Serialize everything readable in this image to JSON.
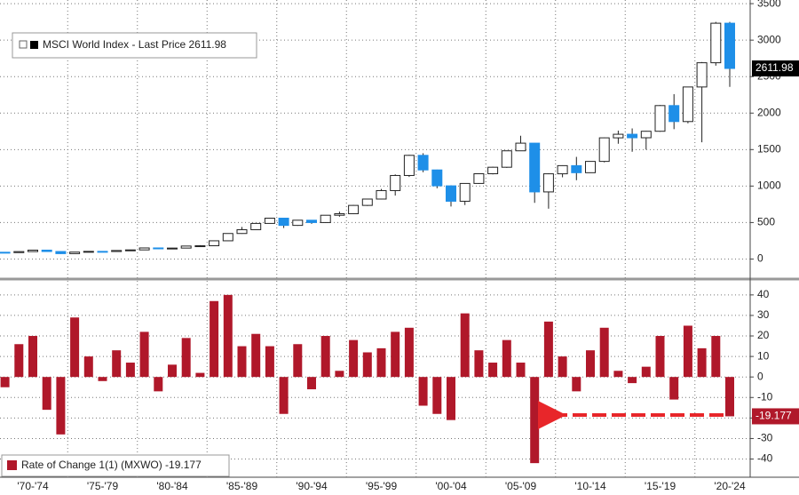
{
  "chart_data": [
    {
      "type": "candlestick",
      "legend": "MSCI World Index - Last Price 2611.98",
      "up_color": "#ffffff",
      "down_color": "#1e8fe8",
      "x_labels": [
        "'70-'74",
        "'75-'79",
        "'80-'84",
        "'85-'89",
        "'90-'94",
        "'95-'99",
        "'00-'04",
        "'05-'09",
        "'10-'14",
        "'15-'19",
        "'20-'24"
      ],
      "open": [
        93,
        88,
        102,
        122,
        103,
        74,
        95,
        105,
        103,
        117,
        125,
        152,
        141,
        150,
        178,
        182,
        250,
        350,
        402,
        488,
        560,
        461,
        532,
        500,
        600,
        621,
        735,
        822,
        938,
        1145,
        1421,
        1221,
        1003,
        792,
        1036,
        1169,
        1258,
        1483,
        1588,
        920,
        1168,
        1280,
        1183,
        1338,
        1661,
        1710,
        1662,
        1751,
        2103,
        1884,
        2358,
        2690,
        3232
      ],
      "high": [
        96,
        104,
        124,
        126,
        106,
        97,
        108,
        110,
        119,
        128,
        158,
        155,
        153,
        180,
        190,
        252,
        352,
        440,
        490,
        562,
        565,
        536,
        535,
        602,
        650,
        740,
        825,
        960,
        1160,
        1428,
        1450,
        1225,
        1010,
        1038,
        1170,
        1265,
        1485,
        1690,
        1590,
        1175,
        1285,
        1400,
        1340,
        1665,
        1760,
        1790,
        1755,
        2110,
        2260,
        2360,
        2700,
        3250,
        3250
      ],
      "low": [
        82,
        86,
        100,
        98,
        70,
        72,
        94,
        98,
        100,
        115,
        122,
        138,
        135,
        148,
        172,
        180,
        248,
        345,
        400,
        486,
        425,
        455,
        482,
        495,
        580,
        615,
        728,
        815,
        870,
        1125,
        1190,
        970,
        720,
        740,
        1030,
        1160,
        1250,
        1480,
        770,
        690,
        1120,
        1080,
        1180,
        1325,
        1580,
        1470,
        1500,
        1745,
        1780,
        1860,
        1600,
        2650,
        2360
      ],
      "close": [
        88,
        102,
        122,
        103,
        74,
        95,
        105,
        103,
        117,
        125,
        152,
        141,
        150,
        178,
        182,
        250,
        350,
        402,
        488,
        560,
        461,
        532,
        500,
        600,
        621,
        735,
        822,
        938,
        1145,
        1421,
        1221,
        1003,
        792,
        1036,
        1169,
        1258,
        1483,
        1588,
        920,
        1168,
        1280,
        1183,
        1338,
        1661,
        1710,
        1662,
        1751,
        2103,
        1884,
        2358,
        2690,
        3232,
        2611.98
      ],
      "ylim": [
        -250,
        3550
      ],
      "yticks": [
        0,
        500,
        1000,
        1500,
        2000,
        2500,
        3000,
        3500
      ],
      "grid": true
    },
    {
      "type": "bar",
      "legend": "Rate of Change 1(1) (MXWO) -19.177",
      "color": "#b0182a",
      "values": [
        -5,
        16,
        20,
        -16,
        -28,
        29,
        10,
        -2,
        13,
        7,
        22,
        -7,
        6,
        19,
        2,
        37,
        40,
        15,
        21,
        15,
        -18,
        16,
        -6,
        20,
        3,
        18,
        12,
        14,
        22,
        24,
        -14,
        -18,
        -21,
        31,
        13,
        7,
        18,
        7,
        -42,
        27,
        10,
        -7,
        13,
        24,
        3,
        -3,
        5,
        20,
        -11,
        25,
        14,
        20,
        -19.177
      ],
      "ylim": [
        -48,
        46
      ],
      "yticks": [
        -40,
        -30,
        -20,
        -10,
        0,
        10,
        20,
        30,
        40
      ],
      "grid": true
    }
  ]
}
